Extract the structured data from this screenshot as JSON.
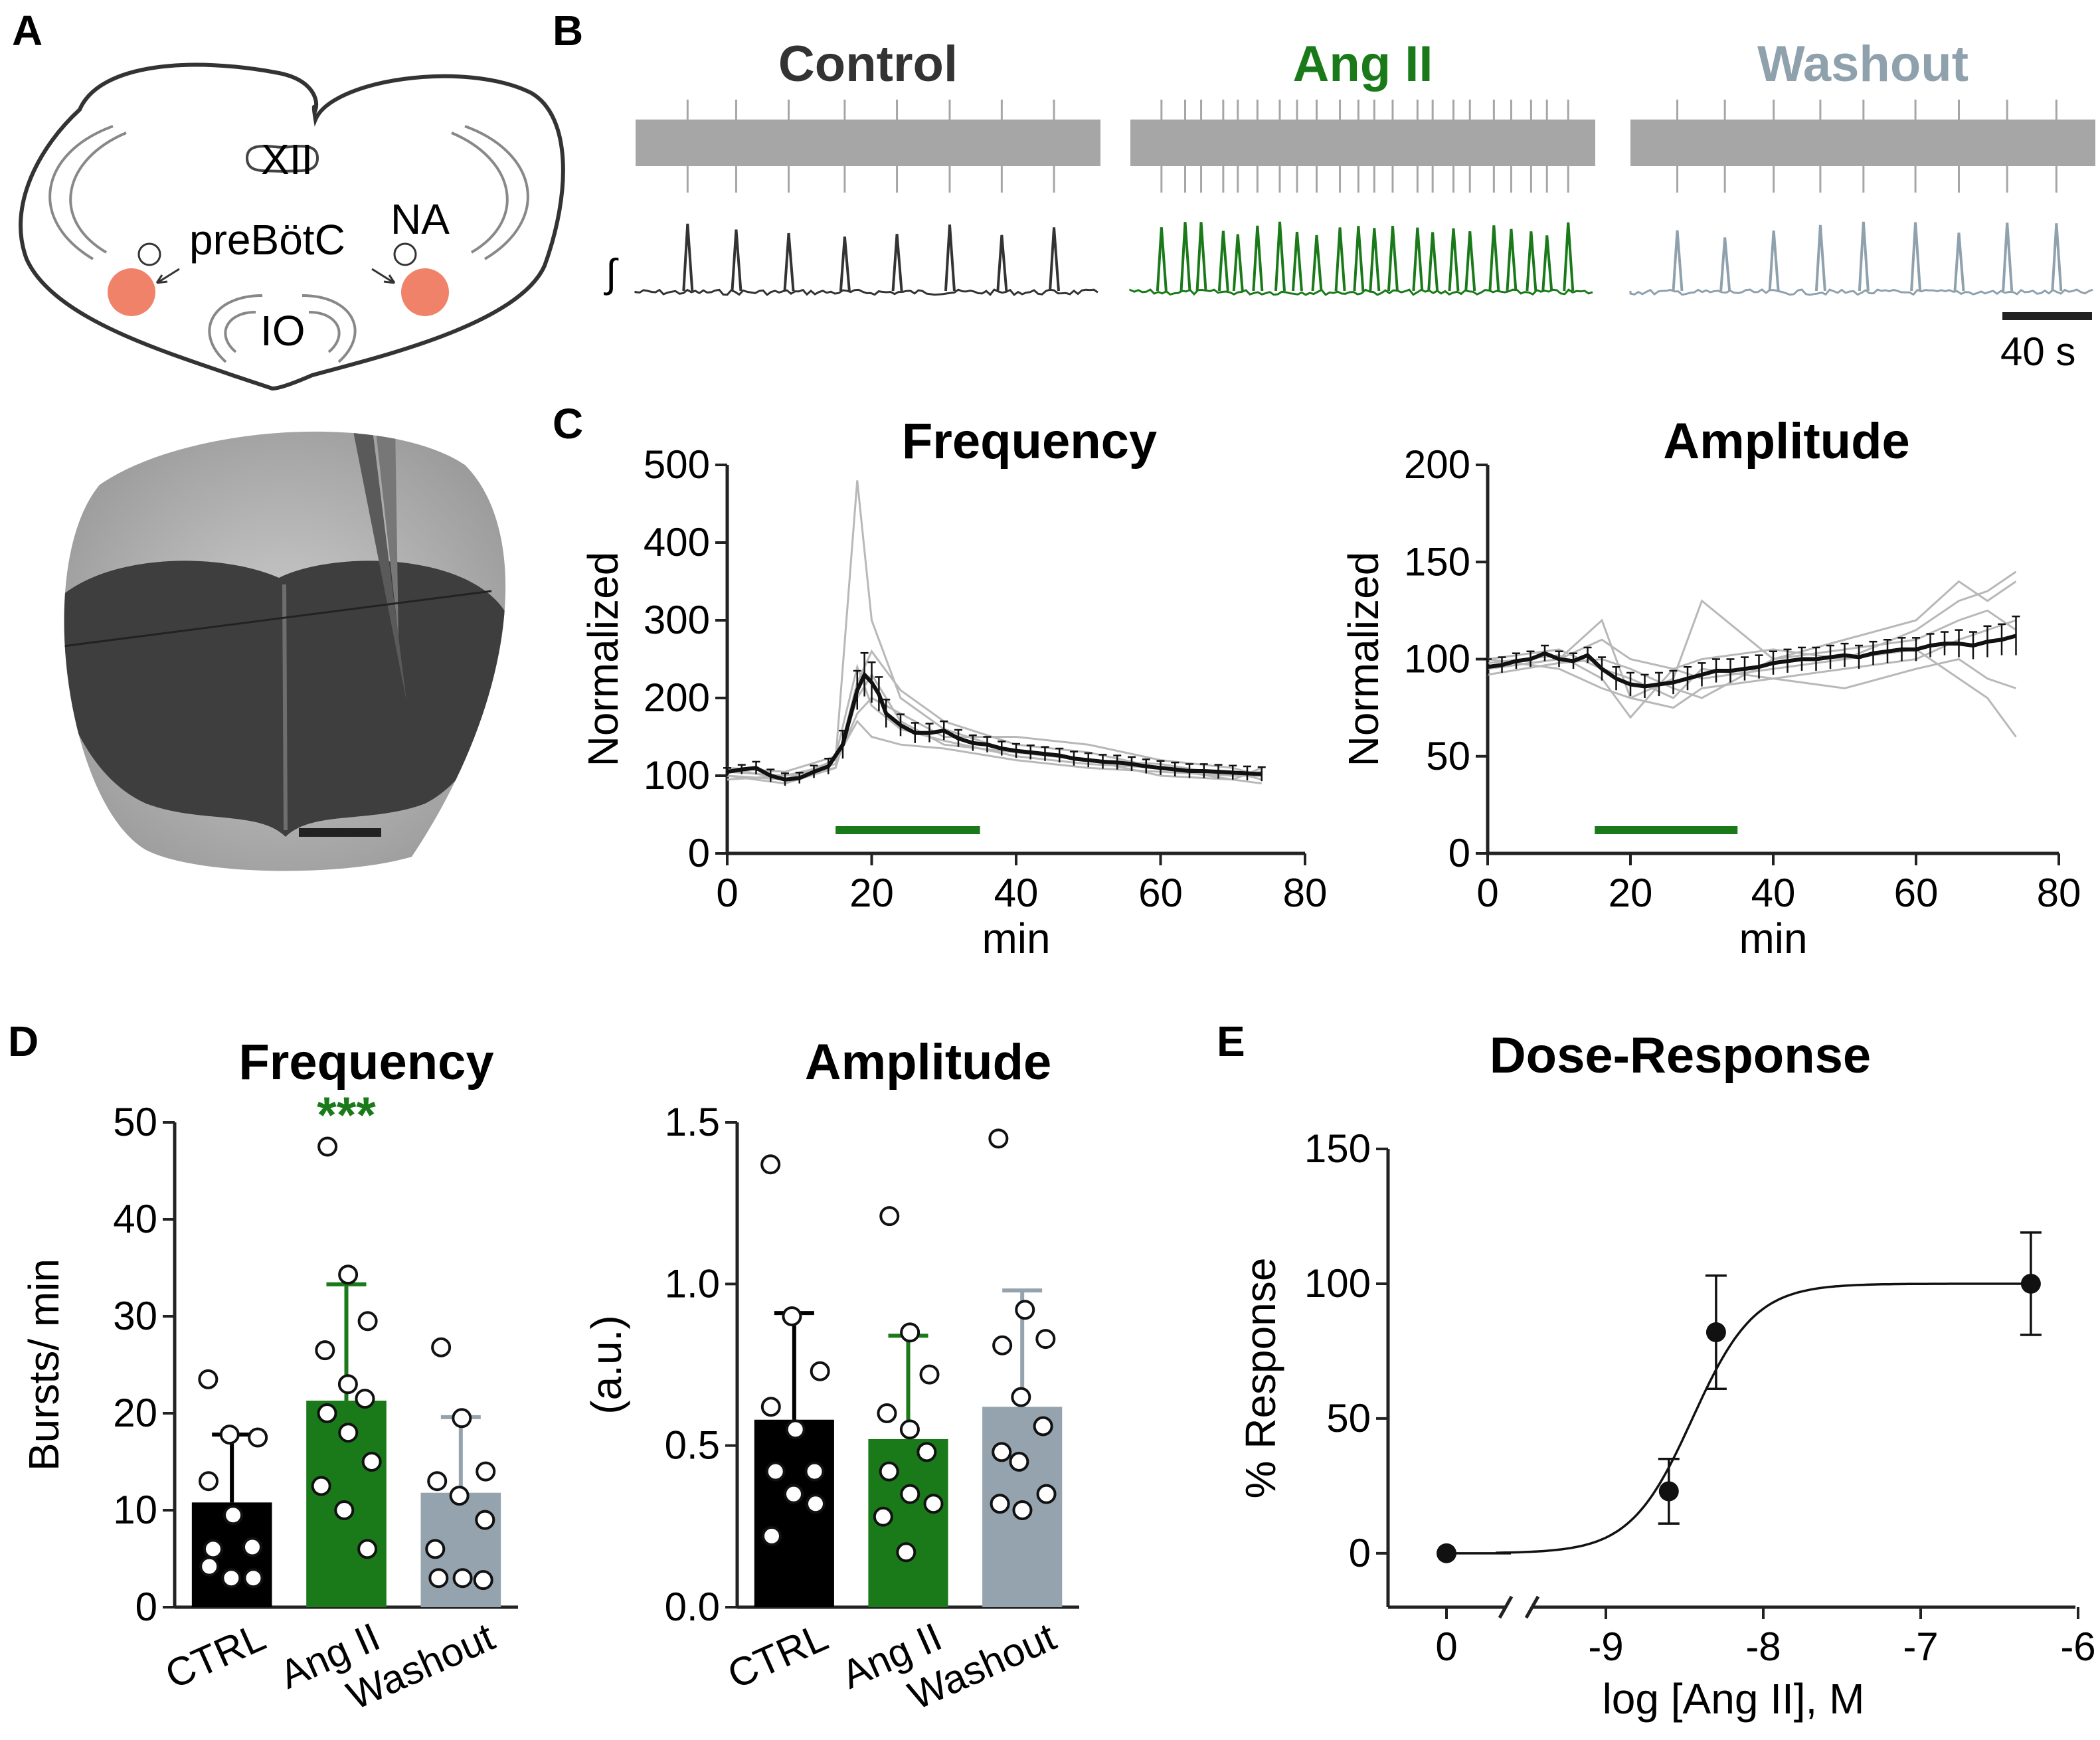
{
  "panels": {
    "A": {
      "letter": "A",
      "labels": {
        "xii": "XII",
        "prebotc": "preBötC",
        "na": "NA",
        "io": "IO"
      }
    },
    "B": {
      "letter": "B",
      "traces": [
        {
          "name": "Control",
          "color": "#333333",
          "bursts_in_window": 8
        },
        {
          "name": "Ang II",
          "color": "#1a7a1a",
          "bursts_in_window": 22
        },
        {
          "name": "Washout",
          "color": "#8fa1ad",
          "bursts_in_window": 9
        }
      ],
      "scale_bar": "40 s",
      "integral_symbol": "∫"
    },
    "C": {
      "letter": "C"
    },
    "D": {
      "letter": "D",
      "stars": "***"
    },
    "E": {
      "letter": "E"
    }
  },
  "colors": {
    "ctrl": "#000000",
    "angii": "#1a7a1a",
    "washout": "#94a3ae",
    "grey_line": "#b8b8b8",
    "pbc": "#f0826a"
  },
  "chart_data": [
    {
      "id": "C-frequency",
      "type": "line",
      "title": "Frequency",
      "xlabel": "min",
      "ylabel": "Normalized",
      "xlim": [
        0,
        80
      ],
      "ylim": [
        0,
        500
      ],
      "xticks": [
        0,
        20,
        40,
        60,
        80
      ],
      "yticks": [
        0,
        100,
        200,
        300,
        400,
        500
      ],
      "treatment_bar": {
        "x_start": 15,
        "x_end": 35,
        "color": "#1a7a1a"
      },
      "mean_series": {
        "name": "mean",
        "x": [
          0,
          2,
          4,
          6,
          8,
          10,
          12,
          14,
          16,
          18,
          19,
          20,
          21,
          22,
          24,
          26,
          28,
          30,
          32,
          34,
          36,
          38,
          40,
          42,
          44,
          46,
          48,
          50,
          52,
          54,
          56,
          58,
          60,
          62,
          64,
          66,
          68,
          70,
          72,
          74
        ],
        "y": [
          105,
          108,
          110,
          100,
          95,
          97,
          105,
          112,
          140,
          210,
          230,
          220,
          205,
          180,
          165,
          155,
          155,
          158,
          148,
          142,
          140,
          135,
          132,
          130,
          128,
          126,
          122,
          120,
          118,
          117,
          115,
          112,
          110,
          108,
          106,
          106,
          105,
          104,
          103,
          102
        ],
        "err": [
          5,
          6,
          8,
          8,
          8,
          7,
          8,
          10,
          18,
          25,
          28,
          26,
          22,
          18,
          14,
          13,
          12,
          12,
          11,
          10,
          10,
          9,
          9,
          9,
          9,
          9,
          9,
          9,
          9,
          9,
          9,
          9,
          9,
          9,
          9,
          9,
          9,
          9,
          9,
          9
        ]
      },
      "individual_series": [
        {
          "x": [
            0,
            8,
            15,
            18,
            20,
            24,
            30,
            40,
            50,
            60,
            70,
            74
          ],
          "y": [
            110,
            95,
            120,
            480,
            300,
            200,
            160,
            130,
            120,
            115,
            100,
            105
          ]
        },
        {
          "x": [
            0,
            8,
            15,
            18,
            20,
            24,
            30,
            40,
            50,
            60,
            70,
            74
          ],
          "y": [
            100,
            90,
            110,
            220,
            260,
            210,
            170,
            140,
            130,
            110,
            95,
            90
          ]
        },
        {
          "x": [
            0,
            8,
            15,
            18,
            20,
            24,
            30,
            40,
            50,
            60,
            70,
            74
          ],
          "y": [
            105,
            100,
            115,
            180,
            200,
            180,
            150,
            150,
            140,
            120,
            110,
            100
          ]
        },
        {
          "x": [
            0,
            8,
            15,
            18,
            20,
            24,
            30,
            40,
            50,
            60,
            70,
            74
          ],
          "y": [
            95,
            100,
            110,
            200,
            230,
            170,
            140,
            130,
            120,
            100,
            95,
            110
          ]
        },
        {
          "x": [
            0,
            8,
            15,
            18,
            20,
            24,
            30,
            40,
            50,
            60,
            70,
            74
          ],
          "y": [
            110,
            105,
            125,
            240,
            190,
            160,
            145,
            125,
            115,
            110,
            105,
            95
          ]
        },
        {
          "x": [
            0,
            8,
            15,
            18,
            20,
            24,
            30,
            40,
            50,
            60,
            70,
            74
          ],
          "y": [
            100,
            95,
            120,
            170,
            150,
            140,
            135,
            120,
            110,
            105,
            100,
            100
          ]
        }
      ]
    },
    {
      "id": "C-amplitude",
      "type": "line",
      "title": "Amplitude",
      "xlabel": "min",
      "ylabel": "Normalized",
      "xlim": [
        0,
        80
      ],
      "ylim": [
        0,
        200
      ],
      "xticks": [
        0,
        20,
        40,
        60,
        80
      ],
      "yticks": [
        0,
        50,
        100,
        150,
        200
      ],
      "treatment_bar": {
        "x_start": 15,
        "x_end": 35,
        "color": "#1a7a1a"
      },
      "mean_series": {
        "name": "mean",
        "x": [
          0,
          2,
          4,
          6,
          8,
          10,
          12,
          14,
          16,
          18,
          20,
          22,
          24,
          26,
          28,
          30,
          32,
          34,
          36,
          38,
          40,
          42,
          44,
          46,
          48,
          50,
          52,
          54,
          56,
          58,
          60,
          62,
          64,
          66,
          68,
          70,
          72,
          74
        ],
        "y": [
          96,
          97,
          99,
          100,
          103,
          100,
          99,
          102,
          95,
          90,
          87,
          86,
          87,
          88,
          90,
          92,
          94,
          94,
          95,
          96,
          98,
          99,
          100,
          100,
          101,
          102,
          101,
          103,
          104,
          105,
          105,
          107,
          108,
          108,
          107,
          109,
          110,
          112
        ],
        "err": [
          4,
          4,
          4,
          4,
          4,
          4,
          4,
          4,
          6,
          6,
          6,
          6,
          6,
          6,
          6,
          6,
          6,
          6,
          6,
          6,
          6,
          6,
          6,
          6,
          6,
          6,
          6,
          6,
          6,
          6,
          6,
          6,
          6,
          7,
          7,
          8,
          8,
          10
        ]
      },
      "individual_series": [
        {
          "x": [
            0,
            10,
            16,
            20,
            26,
            30,
            40,
            50,
            60,
            66,
            70,
            74
          ],
          "y": [
            95,
            100,
            120,
            80,
            90,
            130,
            100,
            110,
            120,
            140,
            130,
            140
          ]
        },
        {
          "x": [
            0,
            10,
            16,
            20,
            26,
            30,
            40,
            50,
            60,
            66,
            70,
            74
          ],
          "y": [
            100,
            95,
            85,
            80,
            75,
            85,
            90,
            95,
            100,
            110,
            115,
            120
          ]
        },
        {
          "x": [
            0,
            10,
            16,
            20,
            26,
            30,
            40,
            50,
            60,
            66,
            70,
            74
          ],
          "y": [
            98,
            102,
            90,
            70,
            95,
            90,
            95,
            100,
            105,
            90,
            80,
            60
          ]
        },
        {
          "x": [
            0,
            10,
            16,
            20,
            26,
            30,
            40,
            50,
            60,
            66,
            70,
            74
          ],
          "y": [
            92,
            98,
            100,
            95,
            85,
            80,
            100,
            105,
            110,
            120,
            125,
            115
          ]
        },
        {
          "x": [
            0,
            10,
            16,
            20,
            26,
            30,
            40,
            50,
            60,
            66,
            70,
            74
          ],
          "y": [
            100,
            105,
            95,
            90,
            80,
            95,
            90,
            85,
            95,
            100,
            90,
            85
          ]
        },
        {
          "x": [
            0,
            10,
            16,
            20,
            26,
            30,
            40,
            50,
            60,
            66,
            70,
            74
          ],
          "y": [
            95,
            100,
            110,
            100,
            95,
            100,
            105,
            100,
            115,
            130,
            135,
            145
          ]
        }
      ]
    },
    {
      "id": "D-frequency",
      "type": "bar",
      "title": "Frequency",
      "ylabel": "Bursts/ min",
      "categories": [
        "CTRL",
        "Ang II",
        "Washout"
      ],
      "values": [
        10.8,
        21.3,
        11.8
      ],
      "sd": [
        7.0,
        12.0,
        7.8
      ],
      "colors": [
        "#000000",
        "#1a7a1a",
        "#94a3ae"
      ],
      "ylim": [
        0,
        50
      ],
      "yticks": [
        0,
        10,
        20,
        30,
        40,
        50
      ],
      "points": [
        [
          23.5,
          17.8,
          17.5,
          13.0,
          9.5,
          6.2,
          6.0,
          3.0,
          3.0,
          4.2
        ],
        [
          47.5,
          34.3,
          29.5,
          26.5,
          23.0,
          21.5,
          20.0,
          18.0,
          15.0,
          12.5,
          10.0,
          6.0
        ],
        [
          26.8,
          19.5,
          14.0,
          13.0,
          11.5,
          9.0,
          6.0,
          3.0,
          2.8,
          3.0
        ]
      ],
      "annotation": {
        "category": "Ang II",
        "text": "***",
        "color": "#1a7a1a"
      }
    },
    {
      "id": "D-amplitude",
      "type": "bar",
      "title": "Amplitude",
      "ylabel": "(a.u.)",
      "categories": [
        "CTRL",
        "Ang II",
        "Washout"
      ],
      "values": [
        0.58,
        0.52,
        0.62
      ],
      "sd": [
        0.33,
        0.32,
        0.36
      ],
      "colors": [
        "#000000",
        "#1a7a1a",
        "#94a3ae"
      ],
      "ylim": [
        0,
        1.5
      ],
      "yticks": [
        "0.0",
        "0.5",
        "1.0",
        "1.5"
      ],
      "points": [
        [
          1.37,
          0.9,
          0.73,
          0.62,
          0.55,
          0.42,
          0.42,
          0.35,
          0.32,
          0.22
        ],
        [
          1.21,
          0.85,
          0.72,
          0.6,
          0.55,
          0.48,
          0.42,
          0.35,
          0.32,
          0.28,
          0.17
        ],
        [
          1.45,
          0.92,
          0.83,
          0.81,
          0.65,
          0.56,
          0.48,
          0.45,
          0.35,
          0.32,
          0.3
        ]
      ]
    },
    {
      "id": "E-dose-response",
      "type": "scatter",
      "title": "Dose-Response",
      "xlabel": "log [Ang II], M",
      "ylabel": "% Response",
      "ylim": [
        -20,
        150
      ],
      "yticks": [
        0,
        50,
        100,
        150
      ],
      "xticks": [
        "0",
        "-9",
        "-8",
        "-7",
        "-6"
      ],
      "points": [
        {
          "label": "0",
          "x": null,
          "y": 0,
          "err": 0
        },
        {
          "x": -8.6,
          "y": 23,
          "err": 12
        },
        {
          "x": -8.3,
          "y": 82,
          "err": 21
        },
        {
          "x": -6.3,
          "y": 100,
          "err": 19
        }
      ],
      "fit": {
        "model": "sigmoid",
        "bottom": 0,
        "top": 100,
        "logEC50": -8.45,
        "hill": 2.2
      }
    }
  ]
}
